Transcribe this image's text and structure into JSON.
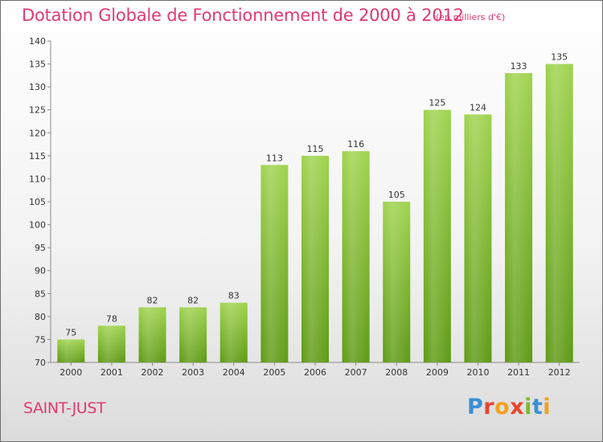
{
  "title": "Dotation Globale de Fonctionnement de 2000 à 2012",
  "subtitle": "(en milliers d'€)",
  "commune": "SAINT-JUST",
  "logo": {
    "text": "Proxiti",
    "colors": [
      "#3a8fd6",
      "#e8452c",
      "#f2a01e",
      "#e8452c",
      "#7dba2e",
      "#3a8fd6",
      "#f2a01e"
    ]
  },
  "colors": {
    "accent": "#e03a72",
    "bar_light": "#9fd34e",
    "bar_dark": "#5e9a14"
  },
  "chart_data": {
    "type": "bar",
    "categories": [
      "2000",
      "2001",
      "2002",
      "2003",
      "2004",
      "2005",
      "2006",
      "2007",
      "2008",
      "2009",
      "2010",
      "2011",
      "2012"
    ],
    "values": [
      75,
      78,
      82,
      82,
      83,
      113,
      115,
      116,
      105,
      125,
      124,
      133,
      135
    ],
    "y_ticks": [
      70,
      75,
      80,
      85,
      90,
      95,
      100,
      105,
      110,
      115,
      120,
      125,
      130,
      135,
      140
    ],
    "ylim": [
      70,
      140
    ],
    "grid": false,
    "legend": "none"
  }
}
